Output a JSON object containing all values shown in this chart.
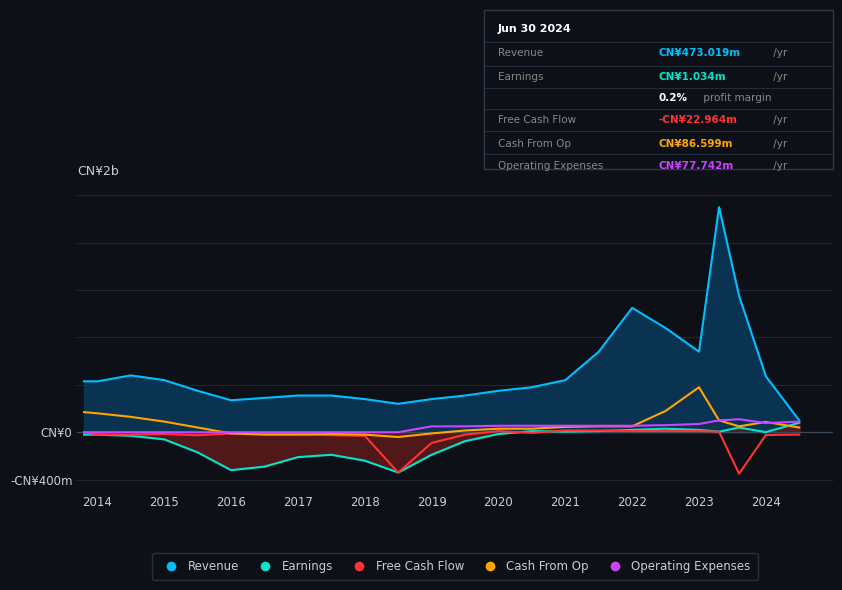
{
  "background_color": "#0d1117",
  "plot_bg_color": "#0d1117",
  "grid_color": "#1e2a3a",
  "text_color": "#cccccc",
  "years": [
    2013.8,
    2014,
    2014.5,
    2015,
    2015.5,
    2016,
    2016.5,
    2017,
    2017.5,
    2018,
    2018.5,
    2019,
    2019.5,
    2020,
    2020.5,
    2021,
    2021.5,
    2022,
    2022.5,
    2023,
    2023.3,
    2023.6,
    2024,
    2024.5
  ],
  "revenue": [
    430,
    430,
    480,
    440,
    350,
    270,
    290,
    310,
    310,
    280,
    240,
    280,
    310,
    350,
    380,
    440,
    680,
    1050,
    880,
    680,
    1900,
    1150,
    473,
    100
  ],
  "earnings": [
    -20,
    -20,
    -30,
    -60,
    -170,
    -320,
    -290,
    -210,
    -190,
    -240,
    -340,
    -190,
    -75,
    -15,
    10,
    5,
    10,
    20,
    30,
    20,
    5,
    40,
    1,
    80
  ],
  "free_cash_flow": [
    0,
    -20,
    -20,
    -15,
    -25,
    -10,
    -10,
    -15,
    -25,
    -30,
    -340,
    -90,
    -20,
    10,
    -5,
    15,
    15,
    10,
    10,
    10,
    5,
    -350,
    -23,
    -20
  ],
  "cash_from_op": [
    170,
    160,
    130,
    90,
    40,
    -10,
    -20,
    -20,
    -15,
    -20,
    -40,
    -10,
    15,
    30,
    30,
    45,
    50,
    50,
    180,
    380,
    100,
    50,
    87,
    40
  ],
  "operating_expenses": [
    0,
    0,
    0,
    0,
    0,
    0,
    0,
    0,
    0,
    0,
    0,
    50,
    50,
    55,
    55,
    55,
    55,
    55,
    60,
    70,
    100,
    110,
    78,
    90
  ],
  "revenue_color": "#00bfff",
  "earnings_color": "#00e5cc",
  "free_cash_flow_color": "#ff3333",
  "cash_from_op_color": "#ffa500",
  "operating_expenses_color": "#cc44ff",
  "revenue_fill_color": "#0a3a5c",
  "earnings_fill_color": "#5c1a1a",
  "info_box": {
    "date": "Jun 30 2024",
    "revenue_label": "Revenue",
    "revenue_value": "CN¥473.019m",
    "earnings_label": "Earnings",
    "earnings_value": "CN¥1.034m",
    "margin_label": "0.2%",
    "margin_text": " profit margin",
    "fcf_label": "Free Cash Flow",
    "fcf_value": "-CN¥22.964m",
    "cashop_label": "Cash From Op",
    "cashop_value": "CN¥86.599m",
    "opex_label": "Operating Expenses",
    "opex_value": "CN¥77.742m",
    "per_yr": " /yr"
  },
  "legend": [
    {
      "label": "Revenue",
      "color": "#00bfff"
    },
    {
      "label": "Earnings",
      "color": "#00e5cc"
    },
    {
      "label": "Free Cash Flow",
      "color": "#ff3333"
    },
    {
      "label": "Cash From Op",
      "color": "#ffa500"
    },
    {
      "label": "Operating Expenses",
      "color": "#cc44ff"
    }
  ],
  "ylim": [
    -500,
    2100
  ],
  "xlim": [
    2013.7,
    2025.0
  ],
  "ytick_vals": [
    -400,
    0
  ],
  "ytick_labels": [
    "-CN¥400m",
    "CN¥0"
  ],
  "xticks": [
    2014,
    2015,
    2016,
    2017,
    2018,
    2019,
    2020,
    2021,
    2022,
    2023,
    2024
  ],
  "top_label": "CN¥2b"
}
